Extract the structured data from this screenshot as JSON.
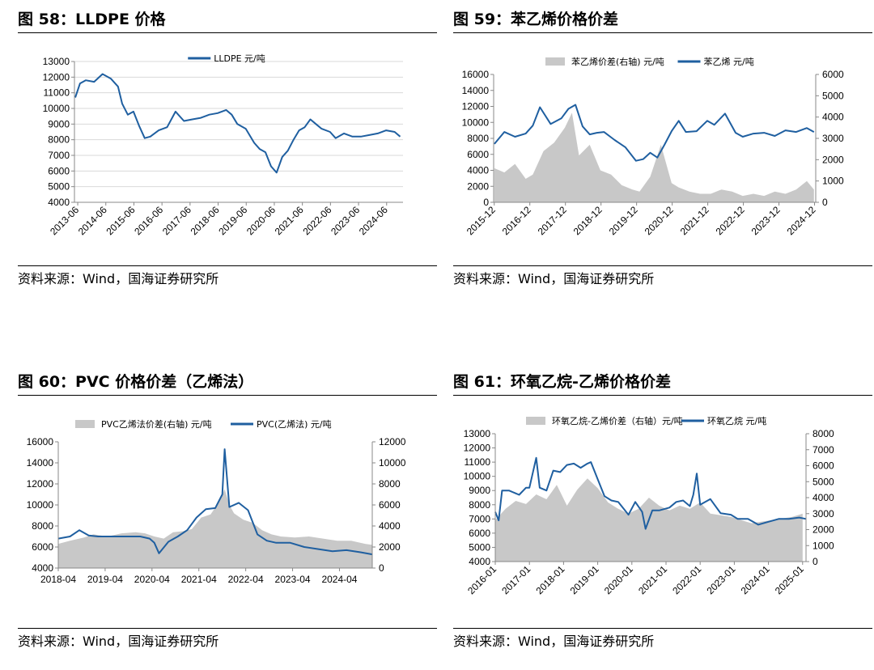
{
  "figures": [
    {
      "title": "图 58：LLDPE 价格",
      "source": "资料来源：Wind，国海证券研究所",
      "chart_data": {
        "type": "line",
        "left_axis": {
          "min": 4000,
          "max": 13000,
          "ticks": [
            "4000",
            "5000",
            "6000",
            "7000",
            "8000",
            "9000",
            "10000",
            "11000",
            "12000",
            "13000"
          ]
        },
        "x_ticks": [
          "2013-06",
          "2014-06",
          "2015-06",
          "2016-06",
          "2017-06",
          "2018-06",
          "2019-06",
          "2020-06",
          "2021-06",
          "2022-06",
          "2023-06",
          "2024-06"
        ],
        "x_range": [
          2013.3,
          2025.0
        ],
        "grid": true,
        "legend_position": "top-center",
        "series": [
          {
            "name": "LLDPE 元/吨",
            "kind": "line",
            "axis": "left",
            "color": "#1f5fa0",
            "x": [
              2013.33,
              2013.5,
              2013.7,
              2014.0,
              2014.3,
              2014.6,
              2014.85,
              2015.0,
              2015.2,
              2015.4,
              2015.6,
              2015.8,
              2016.0,
              2016.3,
              2016.6,
              2016.9,
              2017.2,
              2017.5,
              2017.8,
              2018.1,
              2018.4,
              2018.7,
              2018.9,
              2019.1,
              2019.4,
              2019.7,
              2019.9,
              2020.1,
              2020.3,
              2020.5,
              2020.7,
              2020.9,
              2021.1,
              2021.3,
              2021.5,
              2021.7,
              2021.9,
              2022.1,
              2022.4,
              2022.6,
              2022.9,
              2023.2,
              2023.5,
              2023.8,
              2024.1,
              2024.4,
              2024.7,
              2024.9
            ],
            "y": [
              10700,
              11600,
              11800,
              11700,
              12200,
              11900,
              11400,
              10300,
              9600,
              9800,
              8900,
              8100,
              8200,
              8600,
              8800,
              9800,
              9200,
              9300,
              9400,
              9600,
              9700,
              9900,
              9600,
              9000,
              8700,
              7800,
              7400,
              7200,
              6300,
              5900,
              6900,
              7300,
              8000,
              8600,
              8800,
              9300,
              9000,
              8700,
              8500,
              8100,
              8400,
              8200,
              8200,
              8300,
              8400,
              8600,
              8500,
              8200
            ]
          }
        ]
      }
    },
    {
      "title": "图 59：苯乙烯价格价差",
      "source": "资料来源：Wind，国海证券研究所",
      "chart_data": {
        "type": "area+line",
        "left_axis": {
          "min": 0,
          "max": 16000,
          "ticks": [
            "0",
            "2000",
            "4000",
            "6000",
            "8000",
            "10000",
            "12000",
            "14000",
            "16000"
          ]
        },
        "right_axis": {
          "min": 0,
          "max": 6000,
          "ticks": [
            "0",
            "1000",
            "2000",
            "3000",
            "4000",
            "5000",
            "6000"
          ]
        },
        "x_ticks": [
          "2015-12",
          "2016-12",
          "2017-12",
          "2018-12",
          "2019-12",
          "2020-12",
          "2021-12",
          "2022-12",
          "2023-12",
          "2024-12"
        ],
        "x_range": [
          2015.9,
          2024.95
        ],
        "grid": false,
        "legend_position": "top",
        "series": [
          {
            "name": "苯乙烯价差(右轴) 元/吨",
            "kind": "area",
            "axis": "right",
            "color": "#c8c8c8",
            "x": [
              2015.92,
              2016.2,
              2016.5,
              2016.8,
              2017.0,
              2017.3,
              2017.6,
              2017.9,
              2018.1,
              2018.3,
              2018.6,
              2018.9,
              2019.2,
              2019.5,
              2019.8,
              2020.0,
              2020.3,
              2020.6,
              2020.9,
              2021.1,
              2021.4,
              2021.7,
              2022.0,
              2022.3,
              2022.6,
              2022.9,
              2023.2,
              2023.5,
              2023.8,
              2024.1,
              2024.4,
              2024.7,
              2024.9
            ],
            "y": [
              1600,
              1400,
              1800,
              1100,
              1300,
              2400,
              2800,
              3500,
              4200,
              2200,
              2700,
              1500,
              1300,
              800,
              600,
              500,
              1200,
              2700,
              900,
              700,
              500,
              400,
              400,
              600,
              500,
              300,
              400,
              300,
              500,
              400,
              600,
              1000,
              600
            ]
          },
          {
            "name": "苯乙烯 元/吨",
            "kind": "line",
            "axis": "left",
            "color": "#1f5fa0",
            "x": [
              2015.92,
              2016.2,
              2016.5,
              2016.8,
              2017.0,
              2017.2,
              2017.5,
              2017.8,
              2018.0,
              2018.2,
              2018.4,
              2018.6,
              2018.8,
              2019.0,
              2019.3,
              2019.6,
              2019.9,
              2020.1,
              2020.3,
              2020.5,
              2020.7,
              2020.9,
              2021.1,
              2021.3,
              2021.6,
              2021.9,
              2022.1,
              2022.4,
              2022.7,
              2022.9,
              2023.2,
              2023.5,
              2023.8,
              2024.1,
              2024.4,
              2024.7,
              2024.9
            ],
            "y": [
              7300,
              8800,
              8200,
              8600,
              9600,
              11900,
              9800,
              10500,
              11700,
              12200,
              9500,
              8500,
              8700,
              8800,
              7800,
              6900,
              5200,
              5400,
              6200,
              5600,
              7200,
              8900,
              10200,
              8800,
              8900,
              10200,
              9700,
              11100,
              8700,
              8200,
              8600,
              8700,
              8300,
              9000,
              8800,
              9300,
              8800
            ]
          }
        ]
      }
    },
    {
      "title": "图 60：PVC 价格价差（乙烯法）",
      "source": "资料来源：Wind，国海证券研究所",
      "chart_data": {
        "type": "area+line",
        "left_axis": {
          "min": 4000,
          "max": 16000,
          "ticks": [
            "4000",
            "6000",
            "8000",
            "10000",
            "12000",
            "14000",
            "16000"
          ]
        },
        "right_axis": {
          "min": 0,
          "max": 12000,
          "ticks": [
            "0",
            "2000",
            "4000",
            "6000",
            "8000",
            "10000",
            "12000"
          ]
        },
        "x_ticks": [
          "2018-04",
          "2019-04",
          "2020-04",
          "2021-04",
          "2022-04",
          "2023-04",
          "2024-04"
        ],
        "x_range": [
          2018.25,
          2024.95
        ],
        "grid": false,
        "legend_position": "top",
        "series": [
          {
            "name": "PVC乙烯法价差(右轴) 元/吨",
            "kind": "area",
            "axis": "right",
            "color": "#c8c8c8",
            "x": [
              2018.25,
              2018.5,
              2018.8,
              2019.0,
              2019.3,
              2019.6,
              2019.9,
              2020.1,
              2020.3,
              2020.5,
              2020.7,
              2020.9,
              2021.1,
              2021.3,
              2021.5,
              2021.7,
              2021.8,
              2021.9,
              2022.0,
              2022.2,
              2022.4,
              2022.6,
              2022.8,
              2023.0,
              2023.3,
              2023.6,
              2023.9,
              2024.2,
              2024.5,
              2024.8,
              2024.95
            ],
            "y": [
              2300,
              2600,
              2900,
              3200,
              3000,
              3300,
              3400,
              3300,
              3000,
              2800,
              3400,
              3500,
              3700,
              4800,
              5100,
              6400,
              7500,
              6000,
              5200,
              4600,
              4300,
              3600,
              3200,
              3000,
              2900,
              3000,
              2800,
              2600,
              2600,
              2300,
              2200
            ]
          },
          {
            "name": "PVC(乙烯法) 元/吨",
            "kind": "line",
            "axis": "left",
            "color": "#1f5fa0",
            "x": [
              2018.25,
              2018.5,
              2018.7,
              2018.9,
              2019.1,
              2019.4,
              2019.7,
              2020.0,
              2020.2,
              2020.3,
              2020.4,
              2020.6,
              2020.8,
              2021.0,
              2021.2,
              2021.4,
              2021.6,
              2021.75,
              2021.8,
              2021.9,
              2022.1,
              2022.3,
              2022.5,
              2022.7,
              2022.9,
              2023.2,
              2023.5,
              2023.8,
              2024.1,
              2024.4,
              2024.7,
              2024.95
            ],
            "y": [
              6800,
              7000,
              7600,
              7100,
              7000,
              7000,
              7000,
              7000,
              6800,
              6400,
              5400,
              6500,
              7000,
              7600,
              8800,
              9600,
              9700,
              11000,
              15300,
              9800,
              10200,
              9500,
              7200,
              6600,
              6400,
              6400,
              6000,
              5800,
              5600,
              5700,
              5500,
              5300
            ]
          }
        ]
      }
    },
    {
      "title": "图 61：环氧乙烷-乙烯价格价差",
      "source": "资料来源：Wind，国海证券研究所",
      "chart_data": {
        "type": "area+line",
        "left_axis": {
          "min": 4000,
          "max": 13000,
          "ticks": [
            "4000",
            "5000",
            "6000",
            "7000",
            "8000",
            "9000",
            "10000",
            "11000",
            "12000",
            "13000"
          ]
        },
        "right_axis": {
          "min": 0,
          "max": 8000,
          "ticks": [
            "0",
            "1000",
            "2000",
            "3000",
            "4000",
            "5000",
            "6000",
            "7000",
            "8000"
          ]
        },
        "x_ticks": [
          "2016-01",
          "2017-01",
          "2018-01",
          "2019-01",
          "2020-01",
          "2021-01",
          "2022-01",
          "2023-01",
          "2024-01",
          "2025-01"
        ],
        "x_range": [
          2016.0,
          2025.1
        ],
        "grid": false,
        "legend_position": "top",
        "series": [
          {
            "name": "环氧乙烷-乙烯价差（右轴）元/吨",
            "kind": "area",
            "axis": "right",
            "color": "#c8c8c8",
            "x": [
              2016.0,
              2016.3,
              2016.6,
              2016.9,
              2017.2,
              2017.5,
              2017.8,
              2018.1,
              2018.4,
              2018.7,
              2019.0,
              2019.3,
              2019.6,
              2019.9,
              2020.2,
              2020.5,
              2020.8,
              2021.1,
              2021.4,
              2021.7,
              2022.0,
              2022.3,
              2022.6,
              2022.9,
              2023.2,
              2023.5,
              2023.8,
              2024.1,
              2024.4,
              2024.7,
              2025.0
            ],
            "y": [
              2600,
              3300,
              3800,
              3600,
              4200,
              3900,
              4800,
              3500,
              4500,
              5200,
              4600,
              3700,
              3300,
              3000,
              3300,
              4000,
              3500,
              3200,
              3500,
              3300,
              3700,
              3000,
              2900,
              2800,
              2600,
              2400,
              2500,
              2600,
              2700,
              2800,
              3000
            ]
          },
          {
            "name": "环氧乙烷 元/吨",
            "kind": "line",
            "axis": "left",
            "color": "#1f5fa0",
            "x": [
              2016.0,
              2016.1,
              2016.2,
              2016.4,
              2016.7,
              2016.9,
              2017.0,
              2017.2,
              2017.3,
              2017.5,
              2017.7,
              2017.9,
              2018.1,
              2018.3,
              2018.5,
              2018.7,
              2018.8,
              2019.0,
              2019.2,
              2019.4,
              2019.6,
              2019.9,
              2020.1,
              2020.3,
              2020.4,
              2020.6,
              2020.8,
              2021.1,
              2021.3,
              2021.5,
              2021.7,
              2021.8,
              2021.9,
              2022.0,
              2022.3,
              2022.6,
              2022.9,
              2023.1,
              2023.4,
              2023.7,
              2024.0,
              2024.3,
              2024.6,
              2024.9,
              2025.1
            ],
            "y": [
              7500,
              6900,
              9000,
              9000,
              8700,
              9200,
              9200,
              11300,
              9200,
              9000,
              10400,
              10300,
              10800,
              10900,
              10600,
              10900,
              11000,
              9800,
              8600,
              8300,
              8200,
              7300,
              8200,
              7500,
              6300,
              7600,
              7600,
              7800,
              8200,
              8300,
              7900,
              8700,
              10200,
              8000,
              8400,
              7400,
              7300,
              7000,
              7000,
              6600,
              6800,
              7000,
              7000,
              7100,
              7000
            ]
          }
        ]
      }
    }
  ]
}
